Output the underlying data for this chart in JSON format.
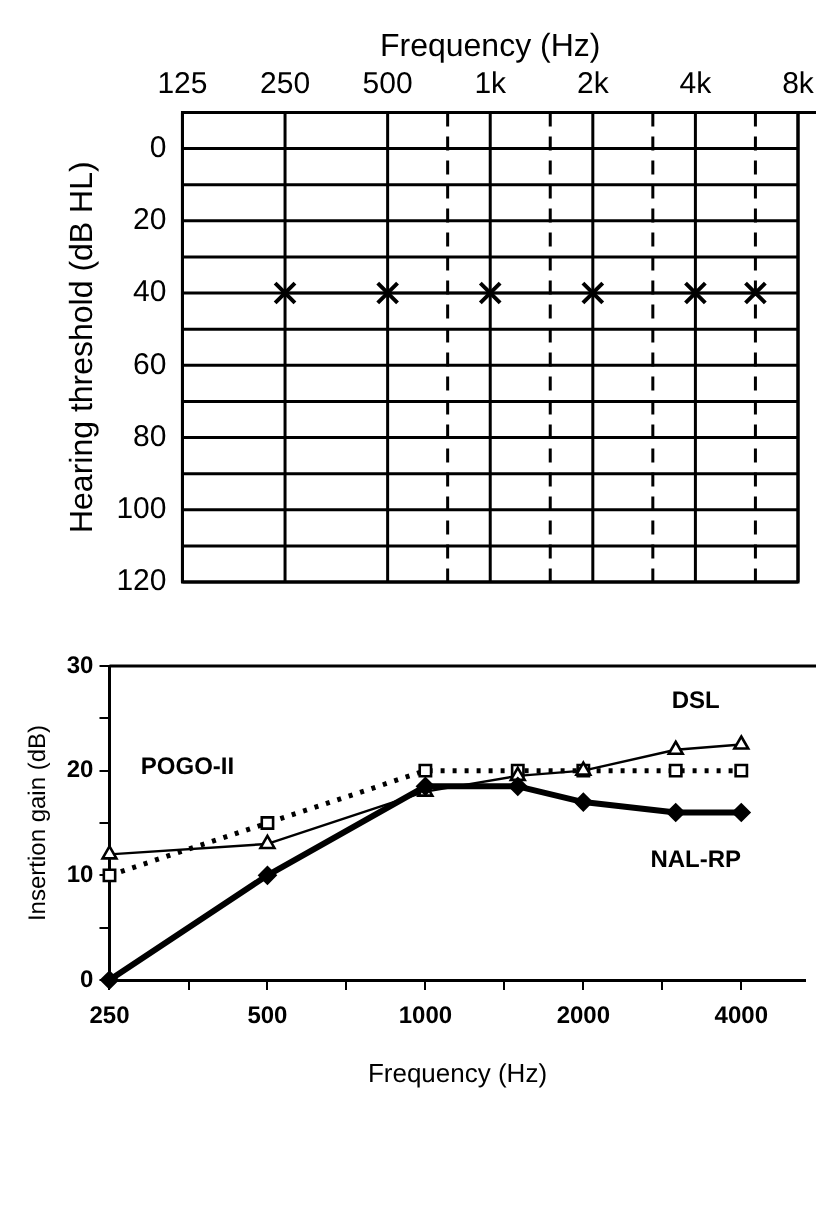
{
  "chart_data": [
    {
      "type": "line",
      "xlabel": "Frequency (Hz)",
      "ylabel": "Hearing threshold (dB HL)",
      "log": "x",
      "grid": true,
      "marker": "cross",
      "line_style": "solid",
      "xlim": [
        125,
        8000
      ],
      "ylim": [
        120,
        -10
      ],
      "xticks": [
        125,
        250,
        500,
        {
          "value": 750,
          "label": null
        },
        {
          "value": 1000,
          "label": "1k"
        },
        {
          "value": 1500,
          "label": null
        },
        {
          "value": 2000,
          "label": "2k"
        },
        {
          "value": 3000,
          "label": null
        },
        {
          "value": 4000,
          "label": "4k"
        },
        {
          "value": 6000,
          "label": null
        },
        {
          "value": 8000,
          "label": "8k"
        }
      ],
      "yticks": [
        {
          "value": -10,
          "label": null
        },
        0,
        {
          "value": 10,
          "label": null
        },
        20,
        {
          "value": 30,
          "label": null
        },
        40,
        {
          "value": 50,
          "label": null
        },
        60,
        {
          "value": 70,
          "label": null
        },
        80,
        {
          "value": 90,
          "label": null
        },
        100,
        {
          "value": 110,
          "label": null
        },
        120
      ],
      "series": [
        {
          "color": "#000000",
          "x": [
            250,
            500,
            1000,
            2000,
            4000,
            6000
          ],
          "values": [
            40,
            40,
            40,
            40,
            40,
            40
          ]
        }
      ]
    },
    {
      "type": "line",
      "xlabel": "Frequency (Hz)",
      "ylabel": "Insertion gain (dB)",
      "log": "x",
      "grid": false,
      "xlim": [
        250,
        5300
      ],
      "ylim": [
        0,
        30
      ],
      "xticks": [
        250,
        {
          "value": 354,
          "label": null
        },
        500,
        {
          "value": 707,
          "label": null
        },
        1000,
        {
          "value": 1414,
          "label": null
        },
        2000,
        {
          "value": 2828,
          "label": null
        },
        4000
      ],
      "yticks": [
        0,
        {
          "value": 5,
          "label": null
        },
        10,
        {
          "value": 15,
          "label": null
        },
        20,
        {
          "value": 25,
          "label": null
        },
        30
      ],
      "series": [
        {
          "name": "POGO-II",
          "color": "#000000",
          "marker": "square",
          "line_style": "dotted",
          "x": [
            250,
            500,
            1000,
            1500,
            2000,
            3000,
            4000
          ],
          "values": [
            10,
            15,
            20,
            20,
            20,
            20,
            20
          ]
        },
        {
          "name": "DSL",
          "color": "#000000",
          "marker": "triangle",
          "line_style": "solid",
          "x": [
            250,
            500,
            1000,
            1500,
            2000,
            3000,
            4000
          ],
          "values": [
            12,
            13,
            18,
            19.5,
            20,
            22,
            22.5
          ]
        },
        {
          "name": "NAL-RP",
          "color": "#000000",
          "marker": "diamond",
          "line_style": "solid",
          "x": [
            250,
            500,
            1000,
            1500,
            2000,
            3000,
            4000
          ],
          "values": [
            0,
            10,
            18.5,
            18.5,
            17,
            16,
            16
          ]
        }
      ]
    }
  ]
}
